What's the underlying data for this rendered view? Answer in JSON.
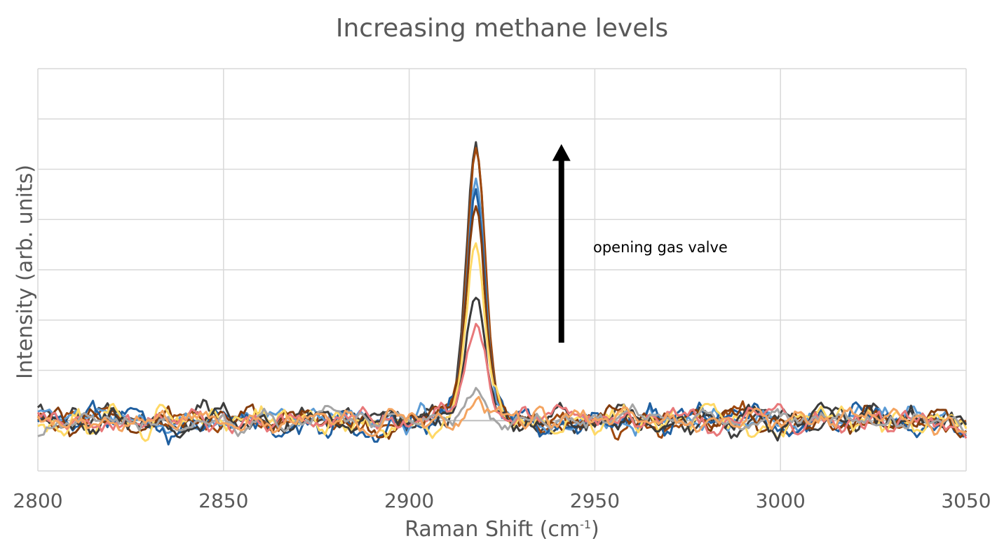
{
  "chart_data": {
    "type": "line",
    "title": "Increasing methane levels",
    "xlabel": "Raman Shift (cm",
    "xlabel_sup": "-1",
    "xlabel_suffix": ")",
    "ylabel": "Intensity (arb. units)",
    "xlim": [
      2800,
      3050
    ],
    "ylim": [
      -1,
      7
    ],
    "x_ticks": [
      "2800",
      "2850",
      "2900",
      "2950",
      "3000",
      "3050"
    ],
    "y_ticks_shown": false,
    "grid": true,
    "legend": "none",
    "annotation": {
      "text": "opening gas valve",
      "arrow": {
        "from": [
          2941,
          1.55
        ],
        "to": [
          2941,
          5.5
        ]
      }
    },
    "series": [
      {
        "color": "#404040",
        "peak": 5.6,
        "noise": 0.17,
        "seed": 1
      },
      {
        "color": "#9E480E",
        "peak": 5.5,
        "noise": 0.17,
        "seed": 2
      },
      {
        "color": "#5B9BD5",
        "peak": 4.9,
        "noise": 0.16,
        "seed": 3
      },
      {
        "color": "#1F5FA0",
        "peak": 4.5,
        "noise": 0.2,
        "seed": 4
      },
      {
        "color": "#843C0C",
        "peak": 4.4,
        "noise": 0.18,
        "seed": 5
      },
      {
        "color": "#FFD966",
        "peak": 3.7,
        "noise": 0.2,
        "seed": 6
      },
      {
        "color": "#3A3A3A",
        "peak": 2.6,
        "noise": 0.17,
        "seed": 7
      },
      {
        "color": "#E8787A",
        "peak": 1.7,
        "noise": 0.16,
        "seed": 8
      },
      {
        "color": "#A5A5A5",
        "peak": 0.5,
        "noise": 0.14,
        "seed": 9
      },
      {
        "color": "#F4A460",
        "peak": 0.45,
        "noise": 0.15,
        "seed": 10
      }
    ],
    "peak_center": 2918,
    "peak_width": 2.4
  }
}
